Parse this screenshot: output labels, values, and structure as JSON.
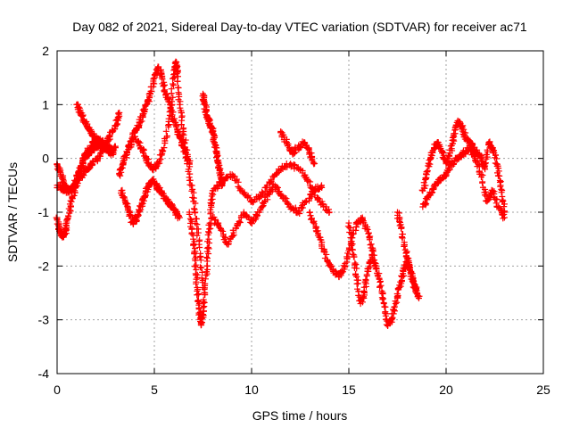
{
  "chart_data": {
    "type": "scatter",
    "title": "Day 082 of 2021, Sidereal Day-to-day VTEC variation (SDTVAR) for receiver ac71",
    "xlabel": "GPS time / hours",
    "ylabel": "SDTVAR / TECUs",
    "xlim": [
      0,
      25
    ],
    "ylim": [
      -4,
      2
    ],
    "x_ticks": [
      0,
      5,
      10,
      15,
      20,
      25
    ],
    "y_ticks": [
      -4,
      -3,
      -2,
      -1,
      0,
      1,
      2
    ],
    "grid": true,
    "marker": "+",
    "series": [
      {
        "name": "SDTVAR",
        "color": "#ff0000",
        "tracks": [
          {
            "x": [
              0.0,
              0.2,
              0.4,
              0.6,
              0.8,
              1.0,
              1.2,
              1.4,
              1.6,
              1.8,
              2.0,
              2.2,
              2.4,
              2.6,
              2.8,
              3.0
            ],
            "y": [
              -0.1,
              -0.3,
              -0.5,
              -0.6,
              -0.55,
              -0.4,
              -0.2,
              0.0,
              0.1,
              0.15,
              0.2,
              0.25,
              0.2,
              0.15,
              0.1,
              0.2
            ]
          },
          {
            "x": [
              0.0,
              0.1,
              0.2,
              0.3,
              0.4,
              0.5,
              0.7,
              0.9,
              1.1,
              1.3,
              1.5,
              1.7,
              1.9,
              2.1,
              2.3,
              2.5,
              2.7,
              2.9
            ],
            "y": [
              -1.1,
              -1.3,
              -1.4,
              -1.45,
              -1.4,
              -1.2,
              -0.9,
              -0.6,
              -0.3,
              -0.1,
              0.1,
              0.2,
              0.3,
              0.35,
              0.3,
              0.25,
              0.2,
              0.1
            ]
          },
          {
            "x": [
              0.0,
              0.3,
              0.6,
              0.9,
              1.2,
              1.5,
              1.8,
              2.1,
              2.4,
              2.7,
              3.0,
              3.2
            ],
            "y": [
              -0.5,
              -0.6,
              -0.6,
              -0.5,
              -0.35,
              -0.2,
              -0.1,
              0.0,
              0.2,
              0.4,
              0.6,
              0.85
            ]
          },
          {
            "x": [
              1.0,
              1.2,
              1.4,
              1.6,
              1.8,
              2.0,
              2.2
            ],
            "y": [
              1.0,
              0.85,
              0.7,
              0.55,
              0.45,
              0.35,
              0.3
            ]
          },
          {
            "x": [
              3.2,
              3.4,
              3.6,
              3.8,
              4.0,
              4.2,
              4.4,
              4.6,
              4.8,
              5.0,
              5.2,
              5.4,
              5.6,
              5.8,
              6.0,
              6.2,
              6.4,
              6.6,
              6.8
            ],
            "y": [
              -0.3,
              -0.1,
              0.1,
              0.3,
              0.5,
              0.6,
              0.8,
              1.0,
              1.2,
              1.5,
              1.7,
              1.5,
              1.2,
              1.0,
              0.7,
              0.5,
              0.3,
              0.1,
              -0.1
            ]
          },
          {
            "x": [
              4.0,
              4.3,
              4.6,
              4.9,
              5.2,
              5.5,
              5.8,
              6.0,
              6.1,
              6.2,
              6.3,
              6.5,
              6.7,
              6.9,
              7.1,
              7.3,
              7.5
            ],
            "y": [
              0.4,
              0.2,
              0.0,
              -0.2,
              -0.1,
              0.2,
              0.8,
              1.5,
              1.8,
              1.6,
              1.0,
              0.5,
              0.0,
              -0.5,
              -1.0,
              -1.6,
              -2.4
            ]
          },
          {
            "x": [
              3.3,
              3.5,
              3.7,
              3.9,
              4.1,
              4.3,
              4.5,
              4.7,
              4.9,
              5.1,
              5.3,
              5.5,
              5.7,
              5.9,
              6.1,
              6.3
            ],
            "y": [
              -0.6,
              -0.8,
              -1.0,
              -1.2,
              -1.1,
              -0.9,
              -0.7,
              -0.5,
              -0.4,
              -0.5,
              -0.6,
              -0.7,
              -0.8,
              -0.9,
              -1.0,
              -1.1
            ]
          },
          {
            "x": [
              6.8,
              7.0,
              7.1,
              7.2,
              7.3,
              7.4,
              7.5,
              7.6,
              7.7,
              7.8,
              7.9,
              8.0
            ],
            "y": [
              -1.0,
              -1.5,
              -1.9,
              -2.4,
              -2.8,
              -3.1,
              -2.9,
              -2.5,
              -2.0,
              -1.5,
              -1.0,
              -0.6
            ]
          },
          {
            "x": [
              7.5,
              7.6,
              7.7,
              7.8,
              7.9,
              8.0,
              8.1,
              8.2,
              8.3,
              8.4,
              8.5
            ],
            "y": [
              1.2,
              1.0,
              0.8,
              0.7,
              0.6,
              0.5,
              0.3,
              0.1,
              -0.1,
              -0.3,
              -0.5
            ]
          },
          {
            "x": [
              8.0,
              8.5,
              9.0,
              9.5,
              10.0,
              10.5,
              11.0,
              11.5,
              12.0,
              12.5,
              13.0,
              13.5,
              14.0
            ],
            "y": [
              -0.6,
              -0.4,
              -0.3,
              -0.6,
              -0.8,
              -0.7,
              -0.4,
              -0.2,
              -0.1,
              -0.2,
              -0.5,
              -0.8,
              -1.0
            ]
          },
          {
            "x": [
              8.0,
              8.4,
              8.8,
              9.2,
              9.6,
              10.0,
              10.4,
              10.8,
              11.2,
              11.6,
              12.0,
              12.4,
              12.8,
              13.2,
              13.6
            ],
            "y": [
              -1.1,
              -1.3,
              -1.6,
              -1.3,
              -1.0,
              -1.2,
              -1.0,
              -0.7,
              -0.5,
              -0.7,
              -0.9,
              -1.0,
              -0.8,
              -0.6,
              -0.5
            ]
          },
          {
            "x": [
              11.5,
              11.8,
              12.1,
              12.4,
              12.7,
              13.0,
              13.2
            ],
            "y": [
              0.5,
              0.3,
              0.1,
              0.2,
              0.3,
              0.1,
              -0.1
            ]
          },
          {
            "x": [
              13.0,
              13.3,
              13.6,
              13.9,
              14.2,
              14.5,
              14.8,
              15.1,
              15.4,
              15.7,
              16.0,
              16.3
            ],
            "y": [
              -1.0,
              -1.3,
              -1.6,
              -1.9,
              -2.1,
              -2.2,
              -2.0,
              -1.6,
              -1.2,
              -1.1,
              -1.4,
              -1.8
            ]
          },
          {
            "x": [
              15.0,
              15.2,
              15.4,
              15.6,
              15.8,
              16.0,
              16.2,
              16.4,
              16.6,
              16.8,
              17.0
            ],
            "y": [
              -1.2,
              -1.7,
              -2.2,
              -2.7,
              -2.5,
              -2.1,
              -1.8,
              -2.0,
              -2.3,
              -2.7,
              -3.1
            ]
          },
          {
            "x": [
              17.0,
              17.2,
              17.4,
              17.6,
              17.8,
              18.0,
              18.2,
              18.4,
              18.6
            ],
            "y": [
              -3.1,
              -3.0,
              -2.7,
              -2.4,
              -2.1,
              -1.9,
              -2.1,
              -2.4,
              -2.6
            ]
          },
          {
            "x": [
              17.5,
              17.7,
              17.9,
              18.1,
              18.3,
              18.5
            ],
            "y": [
              -1.0,
              -1.3,
              -1.7,
              -2.0,
              -2.3,
              -2.5
            ]
          },
          {
            "x": [
              18.8,
              19.0,
              19.2,
              19.4,
              19.6,
              19.8,
              20.0,
              20.2,
              20.4,
              20.6,
              20.8,
              21.0,
              21.2,
              21.4,
              21.6,
              21.8,
              22.0,
              22.2,
              22.4,
              22.6,
              22.8,
              23.0
            ],
            "y": [
              -0.6,
              -0.3,
              0.0,
              0.2,
              0.3,
              0.1,
              -0.1,
              0.1,
              0.4,
              0.7,
              0.6,
              0.4,
              0.3,
              0.2,
              0.1,
              0.0,
              -0.2,
              0.3,
              0.2,
              -0.1,
              -0.5,
              -1.0
            ]
          },
          {
            "x": [
              18.8,
              19.1,
              19.4,
              19.7,
              20.0,
              20.3,
              20.6,
              20.9,
              21.2,
              21.5,
              21.8,
              22.1,
              22.4,
              22.7,
              23.0
            ],
            "y": [
              -0.9,
              -0.7,
              -0.5,
              -0.4,
              -0.3,
              -0.1,
              0.0,
              0.1,
              0.2,
              0.0,
              -0.3,
              -0.8,
              -0.6,
              -0.9,
              -1.1
            ]
          }
        ]
      }
    ]
  }
}
